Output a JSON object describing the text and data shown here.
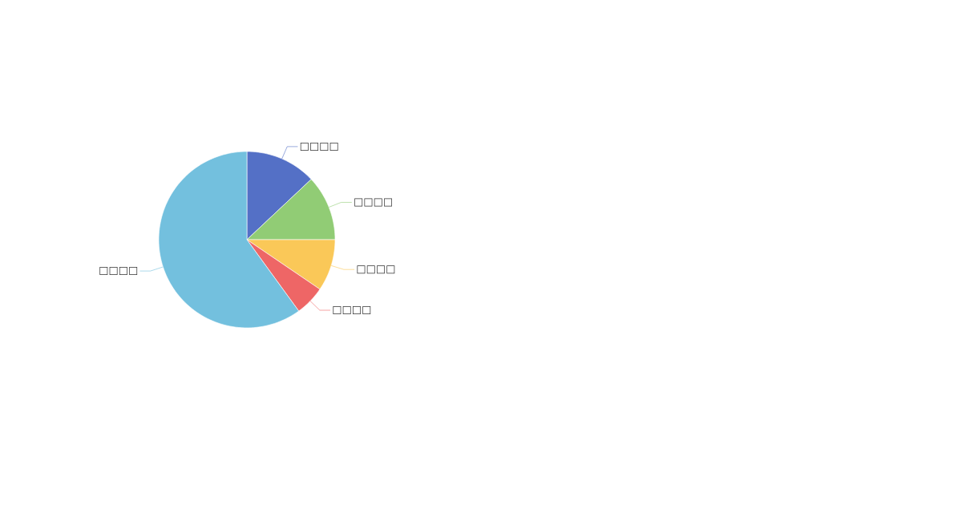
{
  "chart_data": {
    "type": "pie",
    "categories": [
      "□□□□",
      "□□□□",
      "□□□□",
      "□□□□",
      "□□□□"
    ],
    "values": [
      13,
      12,
      9.5,
      5.5,
      60
    ],
    "colors": [
      "#5470c6",
      "#91cc75",
      "#fac858",
      "#ee6666",
      "#73c0de"
    ]
  }
}
